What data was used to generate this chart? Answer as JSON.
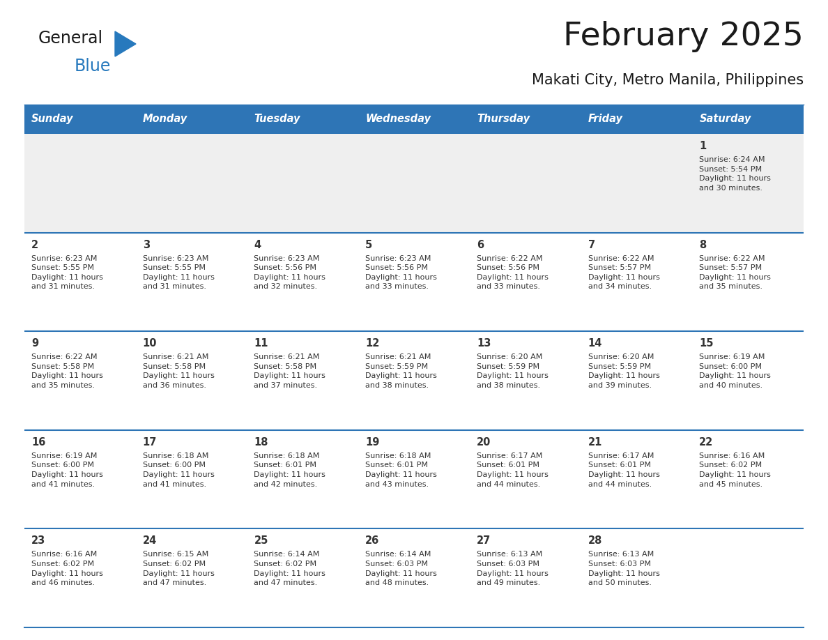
{
  "title": "February 2025",
  "subtitle": "Makati City, Metro Manila, Philippines",
  "header_color": "#2E75B6",
  "header_text_color": "#FFFFFF",
  "days_of_week": [
    "Sunday",
    "Monday",
    "Tuesday",
    "Wednesday",
    "Thursday",
    "Friday",
    "Saturday"
  ],
  "alt_row_color": "#EFEFEF",
  "white_color": "#FFFFFF",
  "line_color": "#2E75B6",
  "text_color": "#333333",
  "calendar_data": [
    [
      {
        "day": null,
        "sunrise": null,
        "sunset": null,
        "daylight": null
      },
      {
        "day": null,
        "sunrise": null,
        "sunset": null,
        "daylight": null
      },
      {
        "day": null,
        "sunrise": null,
        "sunset": null,
        "daylight": null
      },
      {
        "day": null,
        "sunrise": null,
        "sunset": null,
        "daylight": null
      },
      {
        "day": null,
        "sunrise": null,
        "sunset": null,
        "daylight": null
      },
      {
        "day": null,
        "sunrise": null,
        "sunset": null,
        "daylight": null
      },
      {
        "day": 1,
        "sunrise": "6:24 AM",
        "sunset": "5:54 PM",
        "daylight_h": "11 hours",
        "daylight_m": "30 minutes."
      }
    ],
    [
      {
        "day": 2,
        "sunrise": "6:23 AM",
        "sunset": "5:55 PM",
        "daylight_h": "11 hours",
        "daylight_m": "31 minutes."
      },
      {
        "day": 3,
        "sunrise": "6:23 AM",
        "sunset": "5:55 PM",
        "daylight_h": "11 hours",
        "daylight_m": "31 minutes."
      },
      {
        "day": 4,
        "sunrise": "6:23 AM",
        "sunset": "5:56 PM",
        "daylight_h": "11 hours",
        "daylight_m": "32 minutes."
      },
      {
        "day": 5,
        "sunrise": "6:23 AM",
        "sunset": "5:56 PM",
        "daylight_h": "11 hours",
        "daylight_m": "33 minutes."
      },
      {
        "day": 6,
        "sunrise": "6:22 AM",
        "sunset": "5:56 PM",
        "daylight_h": "11 hours",
        "daylight_m": "33 minutes."
      },
      {
        "day": 7,
        "sunrise": "6:22 AM",
        "sunset": "5:57 PM",
        "daylight_h": "11 hours",
        "daylight_m": "34 minutes."
      },
      {
        "day": 8,
        "sunrise": "6:22 AM",
        "sunset": "5:57 PM",
        "daylight_h": "11 hours",
        "daylight_m": "35 minutes."
      }
    ],
    [
      {
        "day": 9,
        "sunrise": "6:22 AM",
        "sunset": "5:58 PM",
        "daylight_h": "11 hours",
        "daylight_m": "35 minutes."
      },
      {
        "day": 10,
        "sunrise": "6:21 AM",
        "sunset": "5:58 PM",
        "daylight_h": "11 hours",
        "daylight_m": "36 minutes."
      },
      {
        "day": 11,
        "sunrise": "6:21 AM",
        "sunset": "5:58 PM",
        "daylight_h": "11 hours",
        "daylight_m": "37 minutes."
      },
      {
        "day": 12,
        "sunrise": "6:21 AM",
        "sunset": "5:59 PM",
        "daylight_h": "11 hours",
        "daylight_m": "38 minutes."
      },
      {
        "day": 13,
        "sunrise": "6:20 AM",
        "sunset": "5:59 PM",
        "daylight_h": "11 hours",
        "daylight_m": "38 minutes."
      },
      {
        "day": 14,
        "sunrise": "6:20 AM",
        "sunset": "5:59 PM",
        "daylight_h": "11 hours",
        "daylight_m": "39 minutes."
      },
      {
        "day": 15,
        "sunrise": "6:19 AM",
        "sunset": "6:00 PM",
        "daylight_h": "11 hours",
        "daylight_m": "40 minutes."
      }
    ],
    [
      {
        "day": 16,
        "sunrise": "6:19 AM",
        "sunset": "6:00 PM",
        "daylight_h": "11 hours",
        "daylight_m": "41 minutes."
      },
      {
        "day": 17,
        "sunrise": "6:18 AM",
        "sunset": "6:00 PM",
        "daylight_h": "11 hours",
        "daylight_m": "41 minutes."
      },
      {
        "day": 18,
        "sunrise": "6:18 AM",
        "sunset": "6:01 PM",
        "daylight_h": "11 hours",
        "daylight_m": "42 minutes."
      },
      {
        "day": 19,
        "sunrise": "6:18 AM",
        "sunset": "6:01 PM",
        "daylight_h": "11 hours",
        "daylight_m": "43 minutes."
      },
      {
        "day": 20,
        "sunrise": "6:17 AM",
        "sunset": "6:01 PM",
        "daylight_h": "11 hours",
        "daylight_m": "44 minutes."
      },
      {
        "day": 21,
        "sunrise": "6:17 AM",
        "sunset": "6:01 PM",
        "daylight_h": "11 hours",
        "daylight_m": "44 minutes."
      },
      {
        "day": 22,
        "sunrise": "6:16 AM",
        "sunset": "6:02 PM",
        "daylight_h": "11 hours",
        "daylight_m": "45 minutes."
      }
    ],
    [
      {
        "day": 23,
        "sunrise": "6:16 AM",
        "sunset": "6:02 PM",
        "daylight_h": "11 hours",
        "daylight_m": "46 minutes."
      },
      {
        "day": 24,
        "sunrise": "6:15 AM",
        "sunset": "6:02 PM",
        "daylight_h": "11 hours",
        "daylight_m": "47 minutes."
      },
      {
        "day": 25,
        "sunrise": "6:14 AM",
        "sunset": "6:02 PM",
        "daylight_h": "11 hours",
        "daylight_m": "47 minutes."
      },
      {
        "day": 26,
        "sunrise": "6:14 AM",
        "sunset": "6:03 PM",
        "daylight_h": "11 hours",
        "daylight_m": "48 minutes."
      },
      {
        "day": 27,
        "sunrise": "6:13 AM",
        "sunset": "6:03 PM",
        "daylight_h": "11 hours",
        "daylight_m": "49 minutes."
      },
      {
        "day": 28,
        "sunrise": "6:13 AM",
        "sunset": "6:03 PM",
        "daylight_h": "11 hours",
        "daylight_m": "50 minutes."
      },
      {
        "day": null,
        "sunrise": null,
        "sunset": null,
        "daylight_h": null,
        "daylight_m": null
      }
    ]
  ],
  "logo_general_color": "#1a1a1a",
  "logo_blue_color": "#2779BD"
}
